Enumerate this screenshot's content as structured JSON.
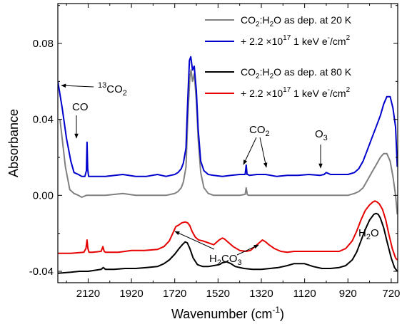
{
  "chart_data": {
    "type": "line",
    "xlabel": "Wavenumber (cm",
    "xlabel_sup": "-1",
    "xlabel_close": ")",
    "ylabel": "Absorbance",
    "xlim": [
      2260,
      690
    ],
    "ylim": [
      -0.046,
      0.101
    ],
    "x_ticks": [
      2120,
      1920,
      1720,
      1520,
      1320,
      1120,
      920,
      720
    ],
    "y_ticks": [
      {
        "value": -0.04,
        "label": "-0.04"
      },
      {
        "value": 0.0,
        "label": "0.00"
      },
      {
        "value": 0.04,
        "label": "0.04"
      },
      {
        "value": 0.08,
        "label": "0.08"
      }
    ],
    "series": [
      {
        "name": "CO2:H2O as dep. at 20 K",
        "legend_html": [
          "CO",
          "2",
          ":H",
          "2",
          "O as dep. at 20 K"
        ],
        "color": "#808080",
        "x": [
          2250,
          2225,
          2205,
          2185,
          2165,
          2150,
          2128,
          2115,
          2100,
          2040,
          1960,
          1900,
          1850,
          1800,
          1760,
          1740,
          1720,
          1705,
          1690,
          1680,
          1668,
          1660,
          1650,
          1645,
          1638,
          1630,
          1620,
          1612,
          1600,
          1585,
          1565,
          1540,
          1500,
          1460,
          1420,
          1395,
          1390,
          1385,
          1380,
          1370,
          1340,
          1300,
          1250,
          1200,
          1150,
          1100,
          1050,
          1000,
          960,
          920,
          890,
          870,
          850,
          830,
          810,
          790,
          770,
          755,
          740,
          725,
          712,
          700,
          692
        ],
        "y": [
          0.04,
          0.015,
          0.003,
          0.001,
          0.0,
          -0.001,
          0.0,
          0.0,
          0.0,
          0.0,
          0.001,
          0.0,
          0.0,
          0.0,
          0.0,
          0.0005,
          0.001,
          0.002,
          0.004,
          0.007,
          0.015,
          0.04,
          0.062,
          0.066,
          0.06,
          0.064,
          0.05,
          0.03,
          0.012,
          0.004,
          0.001,
          0.0,
          0.0,
          0.0,
          0.0,
          0.0005,
          0.004,
          0.0005,
          0.0,
          0.0,
          0.0,
          0.0,
          0.0,
          0.0,
          0.0,
          0.0,
          0.0,
          0.0,
          0.0,
          0.0,
          0.001,
          0.002,
          0.004,
          0.008,
          0.012,
          0.016,
          0.02,
          0.022,
          0.022,
          0.018,
          0.01,
          0.0,
          -0.01
        ]
      },
      {
        "name": "+ 2.2 ×10^17 1 keV e-/cm2 (20 K)",
        "legend_html": [
          "+ 2.2 ×10",
          "17",
          " 1 keV e",
          "-",
          "/cm",
          "2"
        ],
        "color": "#0000cc",
        "x": [
          2260,
          2240,
          2220,
          2200,
          2185,
          2165,
          2150,
          2135,
          2128,
          2125,
          2122,
          2118,
          2110,
          2100,
          2040,
          1960,
          1900,
          1850,
          1800,
          1760,
          1740,
          1720,
          1705,
          1690,
          1680,
          1668,
          1660,
          1652,
          1646,
          1638,
          1630,
          1620,
          1612,
          1600,
          1585,
          1565,
          1540,
          1500,
          1460,
          1420,
          1395,
          1390,
          1386,
          1382,
          1375,
          1340,
          1300,
          1250,
          1200,
          1150,
          1100,
          1050,
          1030,
          1020,
          1000,
          960,
          920,
          890,
          870,
          850,
          830,
          810,
          790,
          770,
          755,
          740,
          725,
          712,
          700,
          692
        ],
        "y": [
          0.06,
          0.046,
          0.03,
          0.018,
          0.012,
          0.011,
          0.01,
          0.01,
          0.013,
          0.028,
          0.014,
          0.01,
          0.01,
          0.01,
          0.01,
          0.011,
          0.01,
          0.01,
          0.011,
          0.01,
          0.0105,
          0.011,
          0.012,
          0.014,
          0.017,
          0.025,
          0.05,
          0.071,
          0.073,
          0.066,
          0.068,
          0.055,
          0.035,
          0.018,
          0.013,
          0.011,
          0.0105,
          0.01,
          0.0105,
          0.011,
          0.011,
          0.016,
          0.011,
          0.011,
          0.0105,
          0.011,
          0.011,
          0.01,
          0.0105,
          0.0105,
          0.011,
          0.0105,
          0.011,
          0.012,
          0.011,
          0.011,
          0.011,
          0.012,
          0.014,
          0.018,
          0.024,
          0.03,
          0.036,
          0.042,
          0.048,
          0.052,
          0.052,
          0.046,
          0.036,
          0.015
        ]
      },
      {
        "name": "CO2:H2O as dep. at 80 K",
        "legend_html": [
          "CO",
          "2",
          ":H",
          "2",
          "O as dep. at 80 K"
        ],
        "color": "#000000",
        "x": [
          2260,
          2200,
          2160,
          2120,
          2060,
          2050,
          2040,
          2000,
          1950,
          1900,
          1850,
          1800,
          1770,
          1745,
          1720,
          1700,
          1685,
          1672,
          1662,
          1650,
          1635,
          1615,
          1590,
          1565,
          1540,
          1515,
          1500,
          1480,
          1460,
          1440,
          1400,
          1360,
          1320,
          1280,
          1240,
          1200,
          1170,
          1150,
          1120,
          1080,
          1040,
          1000,
          960,
          930,
          900,
          880,
          860,
          840,
          820,
          800,
          790,
          780,
          770,
          755,
          740,
          720,
          705,
          692
        ],
        "y": [
          -0.041,
          -0.0405,
          -0.04,
          -0.04,
          -0.039,
          -0.038,
          -0.039,
          -0.039,
          -0.0385,
          -0.0385,
          -0.038,
          -0.0375,
          -0.036,
          -0.034,
          -0.031,
          -0.028,
          -0.026,
          -0.0245,
          -0.025,
          -0.028,
          -0.033,
          -0.0365,
          -0.0375,
          -0.0375,
          -0.037,
          -0.0365,
          -0.0355,
          -0.035,
          -0.036,
          -0.0375,
          -0.0385,
          -0.039,
          -0.039,
          -0.0385,
          -0.038,
          -0.037,
          -0.036,
          -0.036,
          -0.036,
          -0.0375,
          -0.0385,
          -0.0385,
          -0.038,
          -0.037,
          -0.034,
          -0.03,
          -0.024,
          -0.018,
          -0.013,
          -0.01,
          -0.0095,
          -0.01,
          -0.012,
          -0.017,
          -0.024,
          -0.033,
          -0.038,
          -0.04
        ]
      },
      {
        "name": "+ 2.2 ×10^17 1 keV e-/cm2 (80 K)",
        "legend_html": [
          "+ 2.2 ×10",
          "17",
          " 1 keV e",
          "-",
          "/cm",
          "2"
        ],
        "color": "#e60000",
        "x": [
          2260,
          2200,
          2140,
          2130,
          2125,
          2121,
          2116,
          2100,
          2060,
          2052,
          2046,
          2040,
          1980,
          1920,
          1860,
          1800,
          1770,
          1745,
          1725,
          1715,
          1700,
          1688,
          1672,
          1660,
          1650,
          1640,
          1625,
          1610,
          1590,
          1565,
          1540,
          1515,
          1500,
          1490,
          1470,
          1450,
          1420,
          1390,
          1370,
          1350,
          1330,
          1315,
          1300,
          1285,
          1260,
          1230,
          1200,
          1170,
          1150,
          1120,
          1080,
          1040,
          1000,
          960,
          930,
          900,
          880,
          860,
          840,
          820,
          805,
          795,
          785,
          775,
          760,
          745,
          730,
          715,
          700,
          692
        ],
        "y": [
          -0.0305,
          -0.0305,
          -0.03,
          -0.028,
          -0.0235,
          -0.028,
          -0.03,
          -0.03,
          -0.0295,
          -0.027,
          -0.0295,
          -0.03,
          -0.03,
          -0.029,
          -0.029,
          -0.0285,
          -0.027,
          -0.024,
          -0.019,
          -0.0165,
          -0.0155,
          -0.0145,
          -0.014,
          -0.0145,
          -0.016,
          -0.019,
          -0.022,
          -0.0235,
          -0.024,
          -0.025,
          -0.026,
          -0.0235,
          -0.0225,
          -0.023,
          -0.025,
          -0.027,
          -0.029,
          -0.0295,
          -0.029,
          -0.027,
          -0.025,
          -0.0235,
          -0.0245,
          -0.026,
          -0.028,
          -0.0295,
          -0.03,
          -0.0295,
          -0.0295,
          -0.0295,
          -0.0295,
          -0.0295,
          -0.0295,
          -0.0295,
          -0.028,
          -0.024,
          -0.019,
          -0.013,
          -0.008,
          -0.005,
          -0.0035,
          -0.003,
          -0.0035,
          -0.0045,
          -0.0075,
          -0.013,
          -0.021,
          -0.028,
          -0.033,
          -0.034
        ]
      }
    ],
    "annotations": {
      "co13": {
        "base": "13",
        "main": "CO",
        "sub": "2"
      },
      "co": "CO",
      "co2": {
        "main": "CO",
        "sub": "2"
      },
      "o3": {
        "main": "O",
        "sub": "3"
      },
      "h2co3": {
        "a": "H",
        "a_sub": "2",
        "b": "CO",
        "b_sub": "3"
      },
      "h2o": {
        "a": "H",
        "a_sub": "2",
        "b": "O"
      }
    }
  }
}
